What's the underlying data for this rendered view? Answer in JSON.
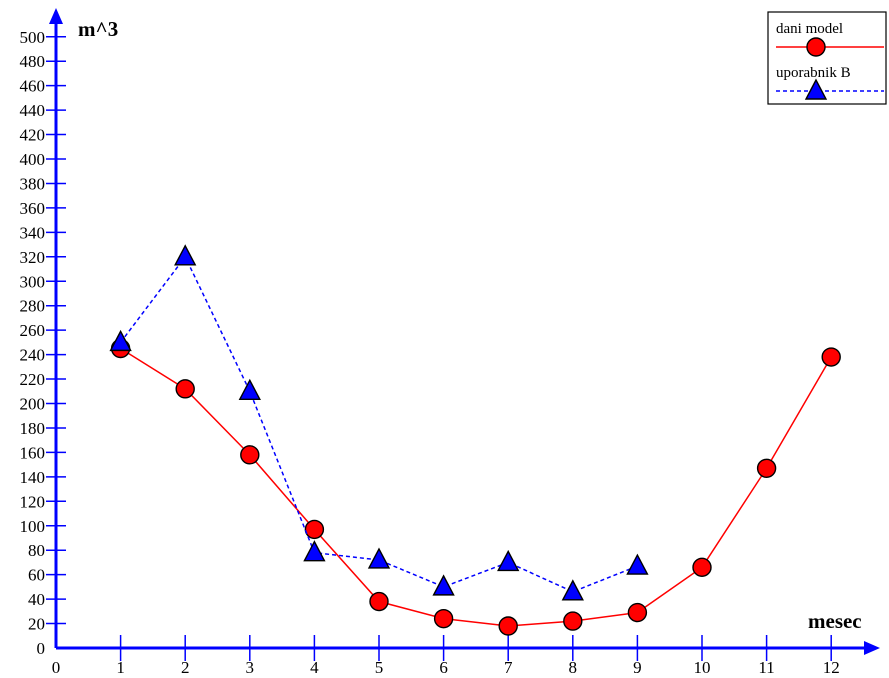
{
  "chart_data": {
    "type": "line",
    "xlabel": "mesec",
    "ylabel": "m^3",
    "xlim": [
      0,
      13
    ],
    "ylim": [
      0,
      510
    ],
    "x_ticks": [
      0,
      1,
      2,
      3,
      4,
      5,
      6,
      7,
      8,
      9,
      10,
      11,
      12
    ],
    "y_ticks": [
      0,
      20,
      40,
      60,
      80,
      100,
      120,
      140,
      160,
      180,
      200,
      220,
      240,
      260,
      280,
      300,
      320,
      340,
      360,
      380,
      400,
      420,
      440,
      460,
      480,
      500
    ],
    "grid": false,
    "legend_position": "top-right",
    "axis_color": "#0000ff",
    "series": [
      {
        "name": "dani model",
        "color": "#ff0000",
        "marker": "circle",
        "line_style": "solid",
        "x": [
          1,
          2,
          3,
          4,
          5,
          6,
          7,
          8,
          9,
          10,
          11,
          12
        ],
        "values": [
          245,
          212,
          158,
          97,
          38,
          24,
          18,
          22,
          29,
          66,
          147,
          238
        ]
      },
      {
        "name": "uporabnik B",
        "color": "#0000ff",
        "marker": "triangle",
        "line_style": "dashed",
        "x": [
          1,
          2,
          3,
          4,
          5,
          6,
          7,
          8,
          9
        ],
        "values": [
          250,
          320,
          210,
          78,
          72,
          50,
          70,
          46,
          67
        ]
      }
    ]
  }
}
